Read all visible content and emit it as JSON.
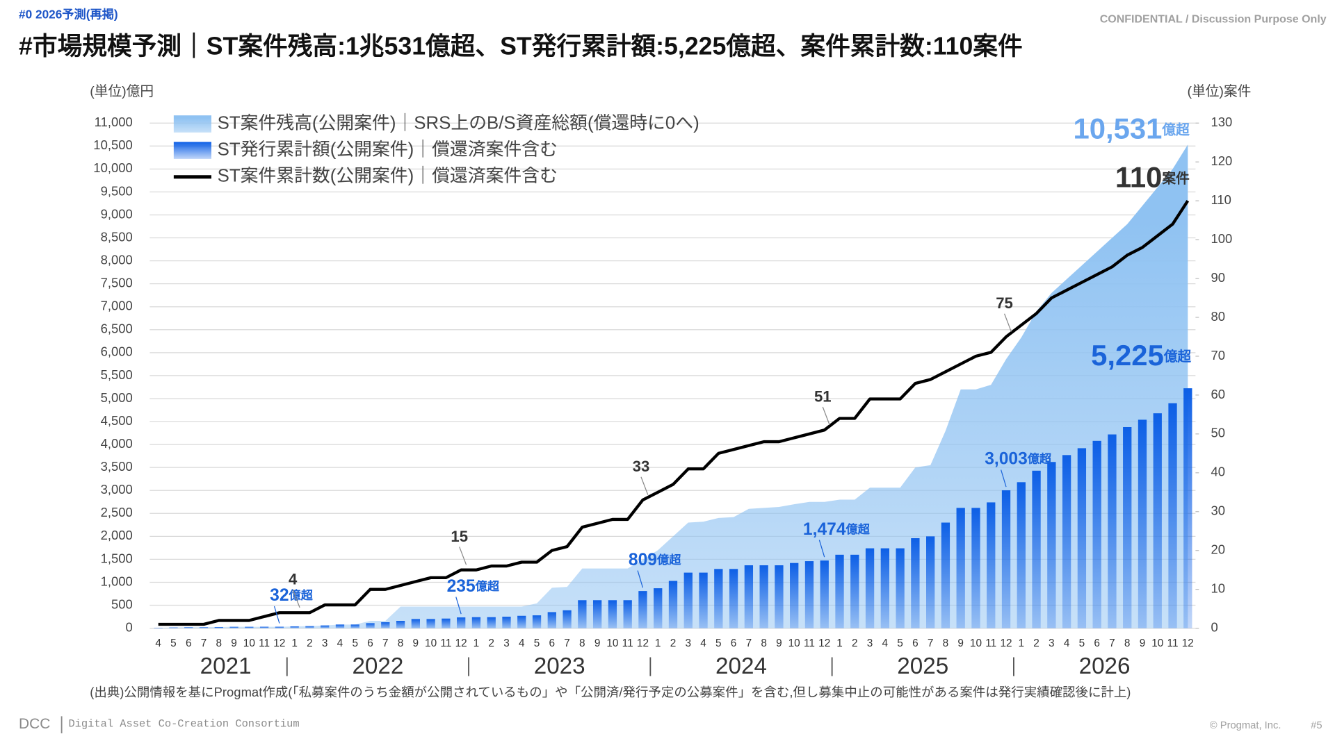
{
  "header": {
    "tag": "#0  2026予測(再掲)",
    "confidential": "CONFIDENTIAL / Discussion Purpose Only"
  },
  "footer": {
    "org_short": "DCC",
    "org_full": "Digital Asset Co-Creation Consortium",
    "copyright": "© Progmat, Inc.",
    "page": "#5"
  },
  "chart_data": {
    "type": "combo",
    "title": "#市場規模予測｜ST案件残高:1兆531億超、ST発行累計額:5,225億超、案件累計数:110案件",
    "y_label": "(単位)億円",
    "y2_label": "(単位)案件",
    "note": "(出典)公開情報を基にProgmat作成(「私募案件のうち金額が公開されているもの」や「公開済/発行予定の公募案件」を含む,但し募集中止の可能性がある案件は発行実績確認後に計上)",
    "categories": [
      "4",
      "5",
      "6",
      "7",
      "8",
      "9",
      "10",
      "11",
      "12",
      "1",
      "2",
      "3",
      "4",
      "5",
      "6",
      "7",
      "8",
      "9",
      "10",
      "11",
      "12",
      "1",
      "2",
      "3",
      "4",
      "5",
      "6",
      "7",
      "8",
      "9",
      "10",
      "11",
      "12",
      "1",
      "2",
      "3",
      "4",
      "5",
      "6",
      "7",
      "8",
      "9",
      "10",
      "11",
      "12",
      "1",
      "2",
      "3",
      "4",
      "5",
      "6",
      "7",
      "8",
      "9",
      "10",
      "11",
      "12",
      "1",
      "2",
      "3",
      "4",
      "5",
      "6",
      "7",
      "8",
      "9",
      "10",
      "11",
      "12"
    ],
    "years": [
      "2021",
      "2022",
      "2023",
      "2024",
      "2025",
      "2026"
    ],
    "ylim": [
      0,
      11000
    ],
    "yticks": [
      0,
      500,
      {
        "value": 1000,
        "label": "1,000"
      },
      {
        "value": 1500,
        "label": "1,500"
      },
      {
        "value": 2000,
        "label": "2,000"
      },
      {
        "value": 2500,
        "label": "2,500"
      },
      {
        "value": 3000,
        "label": "3,000"
      },
      {
        "value": 3500,
        "label": "3,500"
      },
      {
        "value": 4000,
        "label": "4,000"
      },
      {
        "value": 4500,
        "label": "4,500"
      },
      {
        "value": 5000,
        "label": "5,000"
      },
      {
        "value": 5500,
        "label": "5,500"
      },
      {
        "value": 6000,
        "label": "6,000"
      },
      {
        "value": 6500,
        "label": "6,500"
      },
      {
        "value": 7000,
        "label": "7,000"
      },
      {
        "value": 7500,
        "label": "7,500"
      },
      {
        "value": 8000,
        "label": "8,000"
      },
      {
        "value": 8500,
        "label": "8,500"
      },
      {
        "value": 9000,
        "label": "9,000"
      },
      {
        "value": 9500,
        "label": "9,500"
      },
      {
        "value": 10000,
        "label": "10,000"
      },
      {
        "value": 10500,
        "label": "10,500"
      },
      {
        "value": 11000,
        "label": "11,000"
      }
    ],
    "y2lim": [
      0,
      130
    ],
    "y2ticks": [
      0,
      10,
      20,
      30,
      40,
      50,
      60,
      70,
      80,
      90,
      100,
      110,
      120,
      130
    ],
    "grid": true,
    "series": [
      {
        "name": "ST案件残高(公開案件)｜SRS上のB/S資産総額(償還時に0へ)",
        "kind": "area",
        "color": "#8fc2f2",
        "values": [
          10,
          15,
          20,
          20,
          25,
          30,
          30,
          30,
          30,
          40,
          45,
          60,
          80,
          80,
          160,
          160,
          470,
          470,
          470,
          470,
          470,
          470,
          470,
          470,
          470,
          540,
          880,
          900,
          1300,
          1300,
          1300,
          1300,
          1490,
          1700,
          2000,
          2300,
          2320,
          2400,
          2420,
          2600,
          2620,
          2640,
          2700,
          2750,
          2750,
          2800,
          2800,
          3060,
          3060,
          3060,
          3500,
          3550,
          4300,
          5200,
          5200,
          5300,
          5860,
          6330,
          6900,
          7300,
          7600,
          7900,
          8200,
          8500,
          8800,
          9200,
          9600,
          10000,
          10531
        ],
        "value_labels": [
          null,
          null,
          null,
          null,
          null,
          null,
          null,
          null,
          null,
          null,
          null,
          null,
          null,
          null,
          null,
          null,
          null,
          null,
          null,
          null,
          null,
          null,
          null,
          null,
          null,
          null,
          null,
          null,
          null,
          null,
          null,
          null,
          null,
          null,
          null,
          null,
          null,
          null,
          null,
          null,
          null,
          null,
          null,
          null,
          null,
          null,
          null,
          null,
          null,
          null,
          null,
          null,
          null,
          null,
          null,
          null,
          null,
          null,
          null,
          null,
          null,
          null,
          null,
          null,
          null,
          null,
          null,
          null,
          "10,531"
        ],
        "value_label_unit": "億超"
      },
      {
        "name": "ST発行累計額(公開案件)｜償還済案件含む",
        "kind": "bar",
        "color": "#0d5fe6",
        "values": [
          10,
          15,
          20,
          20,
          25,
          30,
          30,
          32,
          32,
          40,
          45,
          60,
          80,
          80,
          110,
          130,
          160,
          200,
          200,
          210,
          235,
          240,
          240,
          250,
          270,
          280,
          350,
          390,
          610,
          610,
          610,
          610,
          809,
          870,
          1030,
          1210,
          1210,
          1290,
          1290,
          1370,
          1370,
          1370,
          1420,
          1460,
          1474,
          1600,
          1600,
          1740,
          1740,
          1740,
          1960,
          2000,
          2300,
          2620,
          2620,
          2740,
          3003,
          3180,
          3430,
          3620,
          3770,
          3920,
          4080,
          4220,
          4380,
          4540,
          4680,
          4900,
          5225
        ],
        "value_labels": [
          null,
          null,
          null,
          null,
          null,
          null,
          null,
          null,
          "32",
          null,
          null,
          null,
          null,
          null,
          null,
          null,
          null,
          null,
          null,
          null,
          "235",
          null,
          null,
          null,
          null,
          null,
          null,
          null,
          null,
          null,
          null,
          null,
          "809",
          null,
          null,
          null,
          null,
          null,
          null,
          null,
          null,
          null,
          null,
          null,
          "1,474",
          null,
          null,
          null,
          null,
          null,
          null,
          null,
          null,
          null,
          null,
          null,
          "3,003",
          null,
          null,
          null,
          null,
          null,
          null,
          null,
          null,
          null,
          null,
          null,
          "5,225"
        ],
        "value_label_unit": "億超"
      },
      {
        "name": "ST案件累計数(公開案件)｜償還済案件含む",
        "kind": "line",
        "axis": "y2",
        "color": "#000000",
        "values": [
          1,
          1,
          1,
          1,
          2,
          2,
          2,
          3,
          4,
          4,
          4,
          6,
          6,
          6,
          10,
          10,
          11,
          12,
          13,
          13,
          15,
          15,
          16,
          16,
          17,
          17,
          20,
          21,
          26,
          27,
          28,
          28,
          33,
          35,
          37,
          41,
          41,
          45,
          46,
          47,
          48,
          48,
          49,
          50,
          51,
          54,
          54,
          59,
          59,
          59,
          63,
          64,
          66,
          68,
          70,
          71,
          75,
          78,
          81,
          85,
          87,
          89,
          91,
          93,
          96,
          98,
          101,
          104,
          110
        ],
        "value_labels": [
          null,
          null,
          null,
          null,
          null,
          null,
          null,
          null,
          null,
          "4",
          null,
          null,
          null,
          null,
          null,
          null,
          null,
          null,
          null,
          null,
          "15",
          null,
          null,
          null,
          null,
          null,
          null,
          null,
          null,
          null,
          null,
          null,
          "33",
          null,
          null,
          null,
          null,
          null,
          null,
          null,
          null,
          null,
          null,
          null,
          "51",
          null,
          null,
          null,
          null,
          null,
          null,
          null,
          null,
          null,
          null,
          null,
          "75",
          null,
          null,
          null,
          null,
          null,
          null,
          null,
          null,
          null,
          null,
          null,
          "110"
        ],
        "last_label_unit": "案件"
      }
    ]
  }
}
